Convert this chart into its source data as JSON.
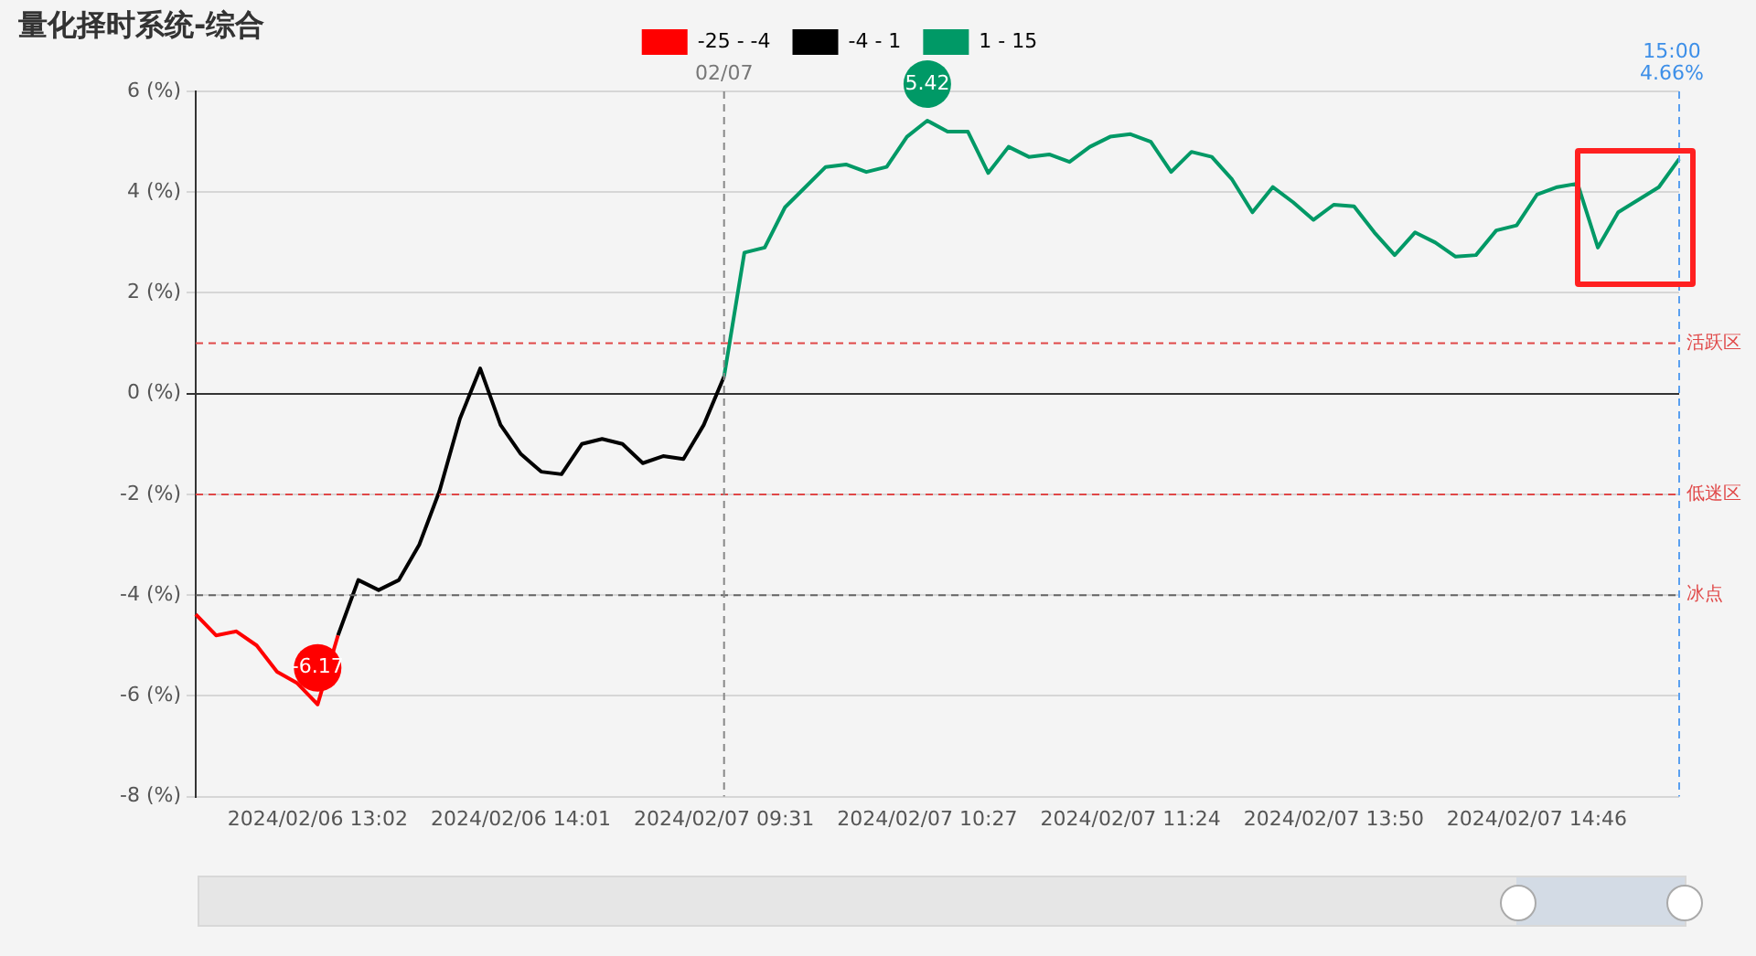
{
  "chart_data": {
    "type": "line",
    "title": "量化择时系统-综合",
    "categories": [
      null,
      null,
      null,
      null,
      null,
      null,
      "2024/02/06 13:02",
      null,
      null,
      null,
      null,
      null,
      null,
      null,
      null,
      null,
      "2024/02/06 14:01",
      null,
      null,
      null,
      null,
      null,
      null,
      null,
      null,
      null,
      "2024/02/07 09:31",
      null,
      null,
      null,
      null,
      null,
      null,
      null,
      null,
      null,
      "2024/02/07 10:27",
      null,
      null,
      null,
      null,
      null,
      null,
      null,
      null,
      null,
      "2024/02/07 11:24",
      null,
      null,
      null,
      null,
      null,
      null,
      null,
      null,
      null,
      "2024/02/07 13:50",
      null,
      null,
      null,
      null,
      null,
      null,
      null,
      null,
      null,
      "2024/02/07 14:46",
      null,
      null,
      null,
      null,
      null,
      null,
      null
    ],
    "series": [
      {
        "name": "-25 - -4",
        "color": "#ff0000",
        "values": [
          -4.38,
          -4.8,
          -4.72,
          -5.0,
          -5.52,
          -5.75,
          -6.17,
          -4.8,
          null,
          null,
          null,
          null,
          null,
          null,
          null,
          null,
          null,
          null,
          null,
          null,
          null,
          null,
          null,
          null,
          null,
          null,
          null,
          null,
          null,
          null,
          null,
          null,
          null,
          null,
          null,
          null,
          null,
          null,
          null,
          null,
          null,
          null,
          null,
          null,
          null,
          null,
          null,
          null,
          null,
          null,
          null,
          null,
          null,
          null,
          null,
          null,
          null,
          null,
          null,
          null,
          null,
          null,
          null,
          null,
          null,
          null,
          null,
          null,
          null,
          null,
          null,
          null,
          null,
          null
        ],
        "value_labels": [
          null,
          null,
          null,
          null,
          null,
          null,
          "-6.17",
          null,
          null,
          null,
          null,
          null,
          null,
          null,
          null,
          null,
          null,
          null,
          null,
          null,
          null,
          null,
          null,
          null,
          null,
          null,
          null,
          null,
          null,
          null,
          null,
          null,
          null,
          null,
          null,
          null,
          null,
          null,
          null,
          null,
          null,
          null,
          null,
          null,
          null,
          null,
          null,
          null,
          null,
          null,
          null,
          null,
          null,
          null,
          null,
          null,
          null,
          null,
          null,
          null,
          null,
          null,
          null,
          null,
          null,
          null,
          null,
          null,
          null,
          null,
          null,
          null,
          null,
          null
        ]
      },
      {
        "name": "-4 - 1",
        "color": "#000000",
        "values": [
          null,
          null,
          null,
          null,
          null,
          null,
          null,
          -4.8,
          -3.7,
          -3.9,
          -3.7,
          -3.0,
          -1.93,
          -0.5,
          0.5,
          -0.62,
          -1.2,
          -1.55,
          -1.6,
          -1.0,
          -0.9,
          -1.0,
          -1.38,
          -1.24,
          -1.3,
          -0.62,
          0.34,
          null,
          null,
          null,
          null,
          null,
          null,
          null,
          null,
          null,
          null,
          null,
          null,
          null,
          null,
          null,
          null,
          null,
          null,
          null,
          null,
          null,
          null,
          null,
          null,
          null,
          null,
          null,
          null,
          null,
          null,
          null,
          null,
          null,
          null,
          null,
          null,
          null,
          null,
          null,
          null,
          null,
          null,
          null,
          null,
          null,
          null,
          null
        ]
      },
      {
        "name": "1 - 15",
        "color": "#009966",
        "values": [
          null,
          null,
          null,
          null,
          null,
          null,
          null,
          null,
          null,
          null,
          null,
          null,
          null,
          null,
          null,
          null,
          null,
          null,
          null,
          null,
          null,
          null,
          null,
          null,
          null,
          null,
          0.34,
          2.8,
          2.9,
          3.7,
          4.1,
          4.5,
          4.55,
          4.4,
          4.5,
          5.1,
          5.42,
          5.2,
          5.2,
          4.38,
          4.9,
          4.7,
          4.75,
          4.6,
          4.9,
          5.1,
          5.15,
          5.0,
          4.4,
          4.8,
          4.7,
          4.25,
          3.6,
          4.1,
          3.8,
          3.45,
          3.75,
          3.72,
          3.2,
          2.75,
          3.2,
          3.0,
          2.72,
          2.75,
          3.24,
          3.34,
          3.95,
          4.1,
          4.17,
          2.9,
          3.6,
          3.85,
          4.1,
          4.66
        ],
        "value_labels": [
          null,
          null,
          null,
          null,
          null,
          null,
          null,
          null,
          null,
          null,
          null,
          null,
          null,
          null,
          null,
          null,
          null,
          null,
          null,
          null,
          null,
          null,
          null,
          null,
          null,
          null,
          null,
          null,
          null,
          null,
          null,
          null,
          null,
          null,
          null,
          null,
          "5.42",
          null,
          null,
          null,
          null,
          null,
          null,
          null,
          null,
          null,
          null,
          null,
          null,
          null,
          null,
          null,
          null,
          null,
          null,
          null,
          null,
          null,
          null,
          null,
          null,
          null,
          null,
          null,
          null,
          null,
          null,
          null,
          null,
          null,
          null,
          null,
          null,
          null
        ]
      }
    ],
    "ylim": [
      -8,
      6
    ],
    "yticks": [
      {
        "value": -8,
        "label": "-8 (%)"
      },
      {
        "value": -6,
        "label": "-6 (%)"
      },
      {
        "value": -4,
        "label": "-4 (%)"
      },
      {
        "value": -2,
        "label": "-2 (%)"
      },
      {
        "value": 0,
        "label": "0 (%)"
      },
      {
        "value": 2,
        "label": "2 (%)"
      },
      {
        "value": 4,
        "label": "4 (%)"
      },
      {
        "value": 6,
        "label": "6 (%)"
      }
    ],
    "grid": "y",
    "legend": "top",
    "marker": "none",
    "line_style": "solid",
    "ref_lines": [
      {
        "axis": "y",
        "value": 1,
        "label": "活跃区",
        "color": "#e04848"
      },
      {
        "axis": "y",
        "value": -2,
        "label": "低迷区",
        "color": "#e04848"
      },
      {
        "axis": "y",
        "value": -4,
        "label": "冰点",
        "color": "#666666"
      },
      {
        "axis": "x",
        "value": "2024/02/07 09:31",
        "label": "02/07",
        "color": "#888888"
      }
    ],
    "annotations": [
      "15:00",
      "4.66%"
    ]
  }
}
